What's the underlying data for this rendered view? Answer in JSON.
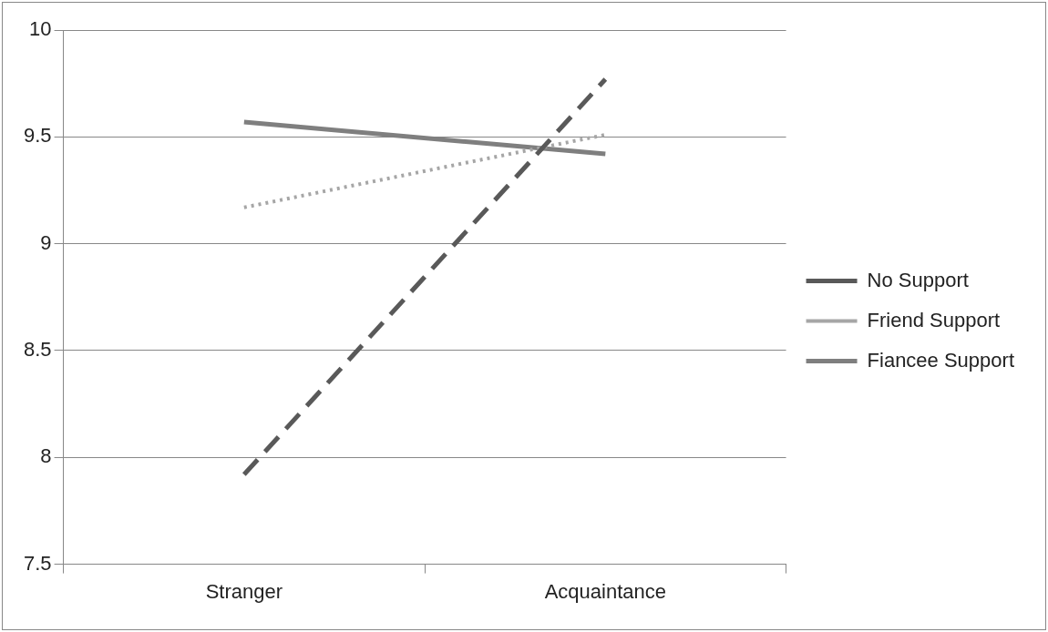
{
  "chart_data": {
    "type": "line",
    "categories": [
      "Stranger",
      "Acquaintance"
    ],
    "series": [
      {
        "name": "No Support",
        "color": "#595959",
        "values": [
          7.92,
          9.77
        ],
        "line_style": "dashed"
      },
      {
        "name": "Friend Support",
        "color": "#a6a6a6",
        "values": [
          9.17,
          9.51
        ],
        "line_style": "dotted"
      },
      {
        "name": "Fiancee Support",
        "color": "#7f7f7f",
        "values": [
          9.57,
          9.42
        ],
        "line_style": "solid"
      }
    ],
    "ylim": [
      7.5,
      10
    ],
    "yticks": [
      7.5,
      8,
      8.5,
      9,
      9.5,
      10
    ],
    "grid": "y",
    "legend": "right",
    "marker": "none"
  }
}
